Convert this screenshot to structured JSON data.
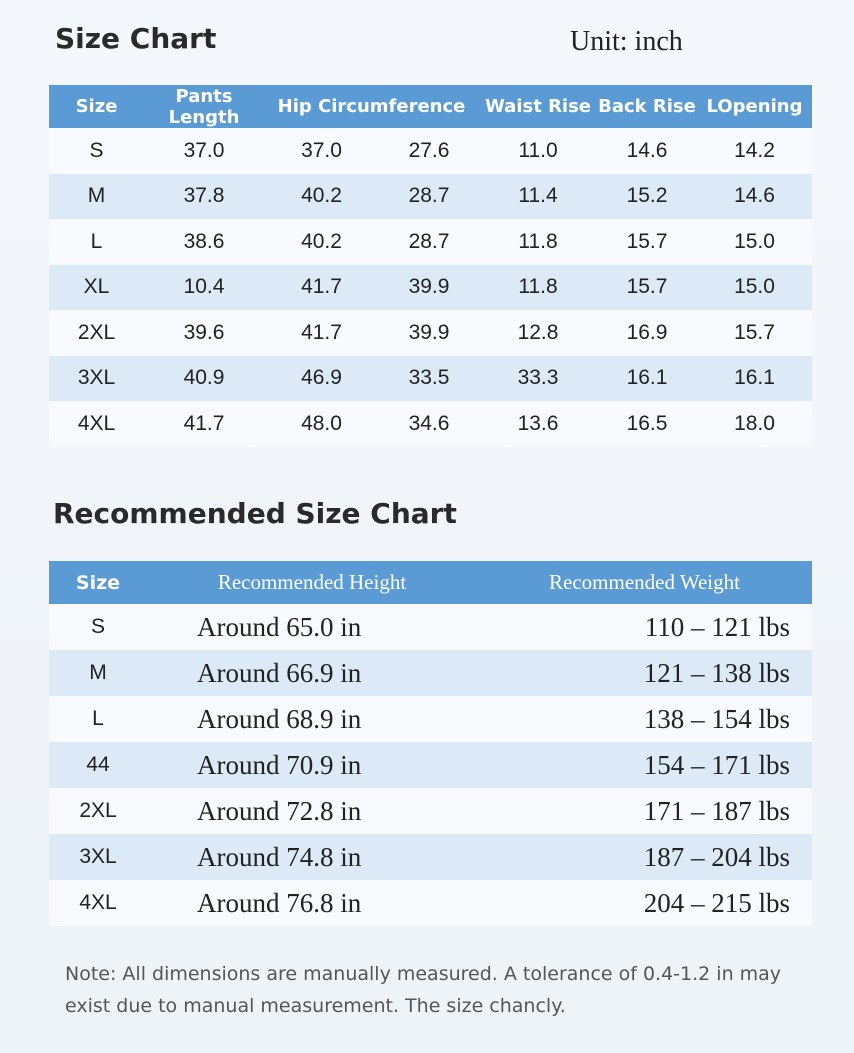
{
  "size_chart": {
    "title": "Size Chart",
    "unit": "Unit: inch",
    "headers": [
      "Size",
      "Pants Length",
      "Hip Circumference",
      "",
      "Waist Rise",
      "Back Rise",
      "LOpening"
    ],
    "rows": [
      [
        "S",
        "37.0",
        "37.0",
        "27.6",
        "11.0",
        "14.6",
        "14.2"
      ],
      [
        "M",
        "37.8",
        "40.2",
        "28.7",
        "11.4",
        "15.2",
        "14.6"
      ],
      [
        "L",
        "38.6",
        "40.2",
        "28.7",
        "11.8",
        "15.7",
        "15.0"
      ],
      [
        "XL",
        "10.4",
        "41.7",
        "39.9",
        "11.8",
        "15.7",
        "15.0"
      ],
      [
        "2XL",
        "39.6",
        "41.7",
        "39.9",
        "12.8",
        "16.9",
        "15.7"
      ],
      [
        "3XL",
        "40.9",
        "46.9",
        "33.5",
        "33.3",
        "16.1",
        "16.1"
      ],
      [
        "4XL",
        "41.7",
        "48.0",
        "34.6",
        "13.6",
        "16.5",
        "18.0"
      ]
    ]
  },
  "recommended_chart": {
    "title": "Recommended Size Chart",
    "headers": [
      "Size",
      "Recommended Height",
      "Recommended Weight"
    ],
    "rows": [
      [
        "S",
        "Around 65.0 in",
        "110 – 121 lbs"
      ],
      [
        "M",
        "Around 66.9 in",
        "121 – 138 lbs"
      ],
      [
        "L",
        "Around 68.9 in",
        "138 – 154 lbs"
      ],
      [
        "44",
        "Around 70.9 in",
        "154 – 171 lbs"
      ],
      [
        "2XL",
        "Around 72.8 in",
        "171 – 187 lbs"
      ],
      [
        "3XL",
        "Around 74.8 in",
        "187 – 204 lbs"
      ],
      [
        "4XL",
        "Around 76.8 in",
        "204 – 215 lbs"
      ]
    ]
  },
  "note": "Note: All dimensions are manually measured. A tolerance of 0.4-1.2 in may exist due to manual measurement. The size chancly.",
  "colors": {
    "header_bg": "#5b9bd5",
    "alt_row": "#dce9f6"
  }
}
